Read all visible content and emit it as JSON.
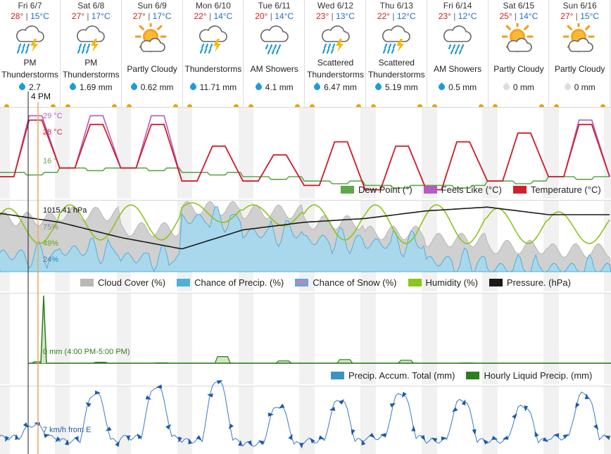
{
  "days": [
    {
      "date": "Fri 6/7",
      "hi": "28°",
      "lo": "15°C",
      "icon": "thunderstorm-icon",
      "cond": "PM Thunderstorms",
      "precip": "2.7",
      "precip_color": "#1e9ad6"
    },
    {
      "date": "Sat 6/8",
      "hi": "27°",
      "lo": "17°C",
      "icon": "thunderstorm-icon",
      "cond": "PM Thunderstorms",
      "precip": "1.69 mm",
      "precip_color": "#1e9ad6"
    },
    {
      "date": "Sun 6/9",
      "hi": "27°",
      "lo": "17°C",
      "icon": "partly-cloudy-icon",
      "cond": "Partly Cloudy",
      "precip": "0.62 mm",
      "precip_color": "#1e9ad6"
    },
    {
      "date": "Mon 6/10",
      "hi": "22°",
      "lo": "14°C",
      "icon": "thunderstorm-icon",
      "cond": "Thunderstorms",
      "precip": "11.71 mm",
      "precip_color": "#1e9ad6"
    },
    {
      "date": "Tue 6/11",
      "hi": "20°",
      "lo": "14°C",
      "icon": "showers-icon",
      "cond": "AM Showers",
      "precip": "4.1 mm",
      "precip_color": "#1e9ad6"
    },
    {
      "date": "Wed 6/12",
      "hi": "23°",
      "lo": "13°C",
      "icon": "thunderstorm-icon",
      "cond": "Scattered Thunderstorms",
      "precip": "6.47 mm",
      "precip_color": "#1e9ad6"
    },
    {
      "date": "Thu 6/13",
      "hi": "22°",
      "lo": "12°C",
      "icon": "thunderstorm-icon",
      "cond": "Scattered Thunderstorms",
      "precip": "5.19 mm",
      "precip_color": "#1e9ad6"
    },
    {
      "date": "Fri 6/14",
      "hi": "23°",
      "lo": "12°C",
      "icon": "showers-icon",
      "cond": "AM Showers",
      "precip": "0.5 mm",
      "precip_color": "#1e9ad6"
    },
    {
      "date": "Sat 6/15",
      "hi": "25°",
      "lo": "14°C",
      "icon": "partly-cloudy-icon",
      "cond": "Partly Cloudy",
      "precip": "0 mm",
      "precip_color": "#dddddd"
    },
    {
      "date": "Sun 6/16",
      "hi": "27°",
      "lo": "15°C",
      "icon": "partly-cloudy-icon",
      "cond": "Partly Cloudy",
      "precip": "0 mm",
      "precip_color": "#dddddd"
    }
  ],
  "cursor": {
    "time_label": "4 PM"
  },
  "colors": {
    "temperature": "#d0202e",
    "feels_like": "#b45cc0",
    "dew_point": "#5ea84a",
    "cloud_cover": "#b8b8b8",
    "precip_chance": "#4fb0d8",
    "snow_chance": "#b388c8",
    "humidity": "#8cc41a",
    "pressure": "#1a1a1a",
    "accum": "#3a93c6",
    "hourly_precip": "#2e7d1e",
    "wind": "#3a7ac8",
    "cursor_now": "#222222",
    "cursor_sel": "#f4a460"
  },
  "chart_data": [
    {
      "type": "line",
      "id": "temperature",
      "readouts": {
        "feels_like": "29 °C",
        "temperature": "28 °C",
        "dew_point": "16 °"
      },
      "legend": [
        {
          "key": "dew_point",
          "label": "Dew Point (°)"
        },
        {
          "key": "feels_like",
          "label": "Feels Like (°C)"
        },
        {
          "key": "temperature",
          "label": "Temperature (°C)"
        }
      ],
      "days": 10,
      "daily_max": [
        28,
        27,
        27,
        22,
        20,
        23,
        22,
        23,
        25,
        27
      ],
      "daily_min": [
        15,
        17,
        17,
        14,
        14,
        13,
        12,
        12,
        14,
        15
      ],
      "feels_like_max": [
        29,
        29,
        29,
        22,
        20,
        23,
        22,
        23,
        25,
        28
      ],
      "dew_point": [
        16,
        17,
        17,
        16,
        15,
        14,
        13,
        13,
        14,
        15
      ],
      "ylim": [
        10,
        31
      ]
    },
    {
      "type": "area",
      "id": "atmosphere",
      "readouts": {
        "pressure": "1015.41 hPa",
        "cloud": "75%",
        "humidity": "49%",
        "precip": "24%"
      },
      "legend": [
        {
          "key": "cloud_cover",
          "label": "Cloud Cover (%)"
        },
        {
          "key": "precip_chance",
          "label": "Chance of Precip. (%)"
        },
        {
          "key": "snow_chance",
          "label": "Chance of Snow (%)"
        },
        {
          "key": "humidity",
          "label": "Humidity (%)"
        },
        {
          "key": "pressure",
          "label": "Pressure. (hPa)"
        }
      ],
      "daily_cloud_cover": [
        75,
        82,
        60,
        90,
        85,
        70,
        55,
        45,
        35,
        30
      ],
      "daily_precip_chance": [
        24,
        30,
        20,
        75,
        55,
        45,
        40,
        15,
        5,
        5
      ],
      "daily_humidity_range": [
        [
          40,
          90
        ],
        [
          45,
          95
        ],
        [
          45,
          95
        ],
        [
          70,
          98
        ],
        [
          65,
          95
        ],
        [
          45,
          95
        ],
        [
          40,
          95
        ],
        [
          40,
          95
        ],
        [
          40,
          90
        ],
        [
          40,
          85
        ]
      ],
      "pressure": [
        1015.4,
        1013,
        1009,
        1006,
        1011,
        1013,
        1014,
        1016,
        1017,
        1015
      ],
      "ylim": [
        0,
        100
      ]
    },
    {
      "type": "bar",
      "id": "precipitation",
      "readouts": {
        "hourly": "0 mm (4:00 PM-5:00 PM)"
      },
      "legend": [
        {
          "key": "accum",
          "label": "Precip. Accum. Total (mm)"
        },
        {
          "key": "hourly_precip",
          "label": "Hourly Liquid Precip. (mm)"
        }
      ],
      "daily_totals_mm": [
        2.7,
        1.69,
        0.62,
        11.71,
        4.1,
        6.47,
        5.19,
        0.5,
        0,
        0
      ]
    },
    {
      "type": "line",
      "id": "wind",
      "readouts": {
        "wind": "7 km/h from E"
      },
      "daily_peak_kmh": [
        8,
        18,
        20,
        22,
        14,
        16,
        18,
        16,
        14,
        18
      ],
      "daily_low_kmh": [
        4,
        3,
        4,
        3,
        2,
        3,
        4,
        3,
        3,
        4
      ]
    }
  ]
}
